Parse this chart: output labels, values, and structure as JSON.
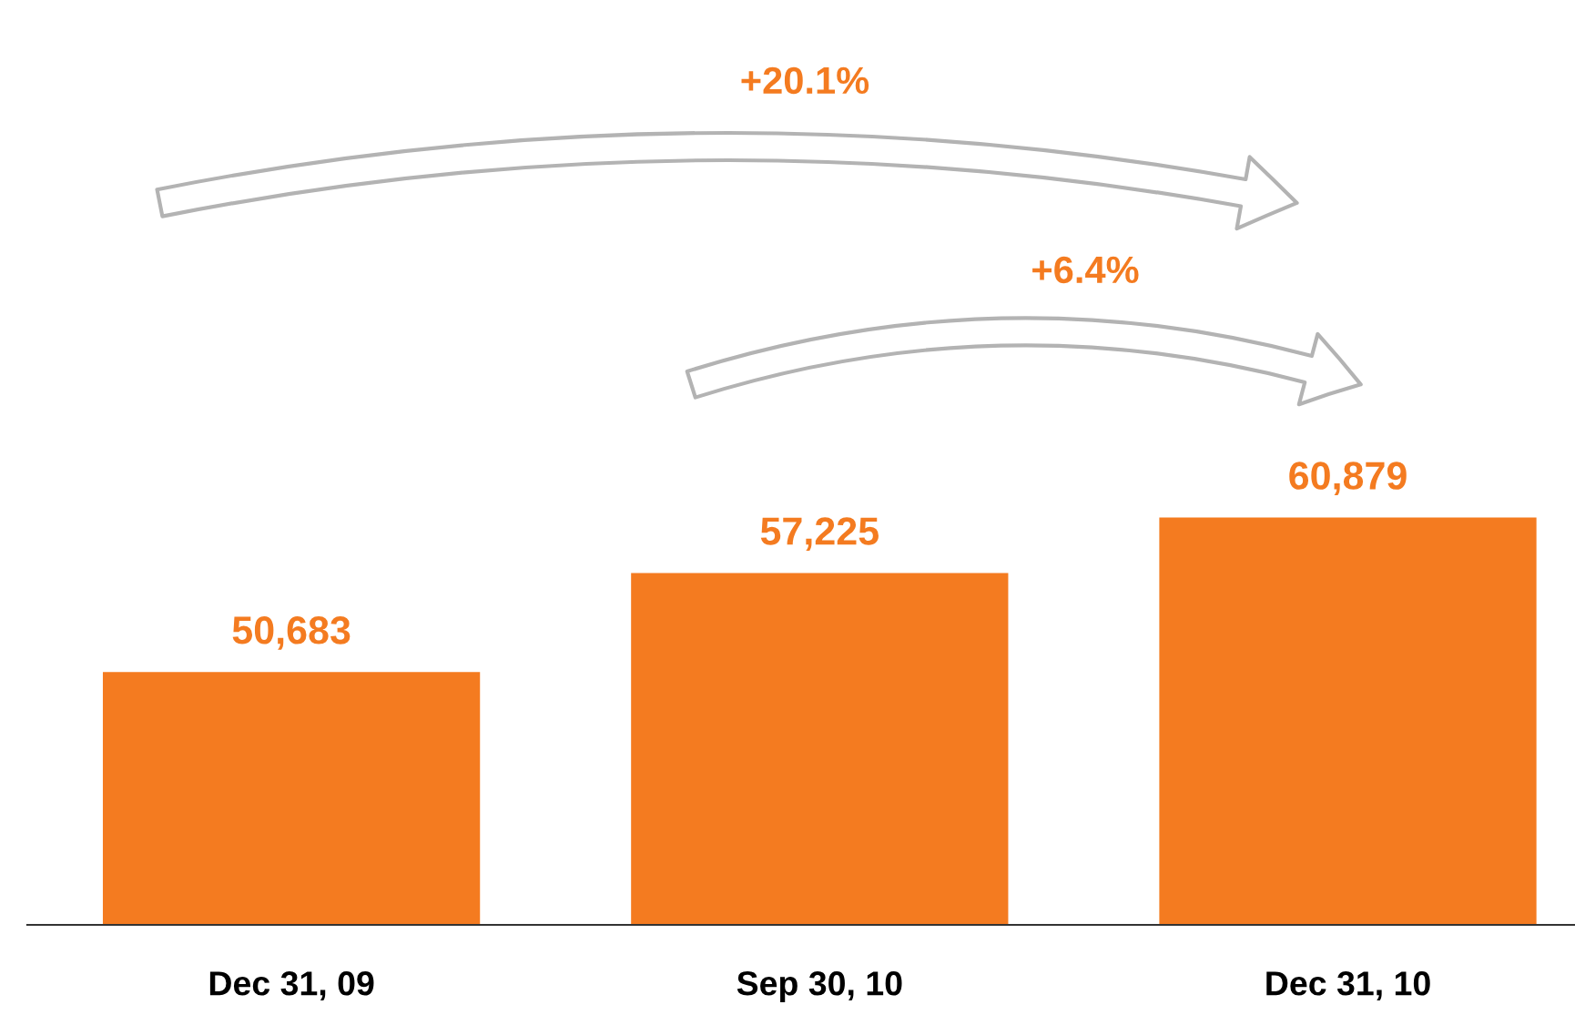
{
  "chart_data": {
    "type": "bar",
    "categories": [
      "Dec 31, 09",
      "Sep 30, 10",
      "Dec 31, 10"
    ],
    "values": [
      50683,
      57225,
      60879
    ],
    "color": "#f47b20",
    "value_labels": [
      "50,683",
      "57,225",
      "60,879"
    ],
    "tick_labels": "x",
    "grid": false,
    "legend": false,
    "annotations": [
      "+20.1%",
      "+6.4%"
    ]
  }
}
